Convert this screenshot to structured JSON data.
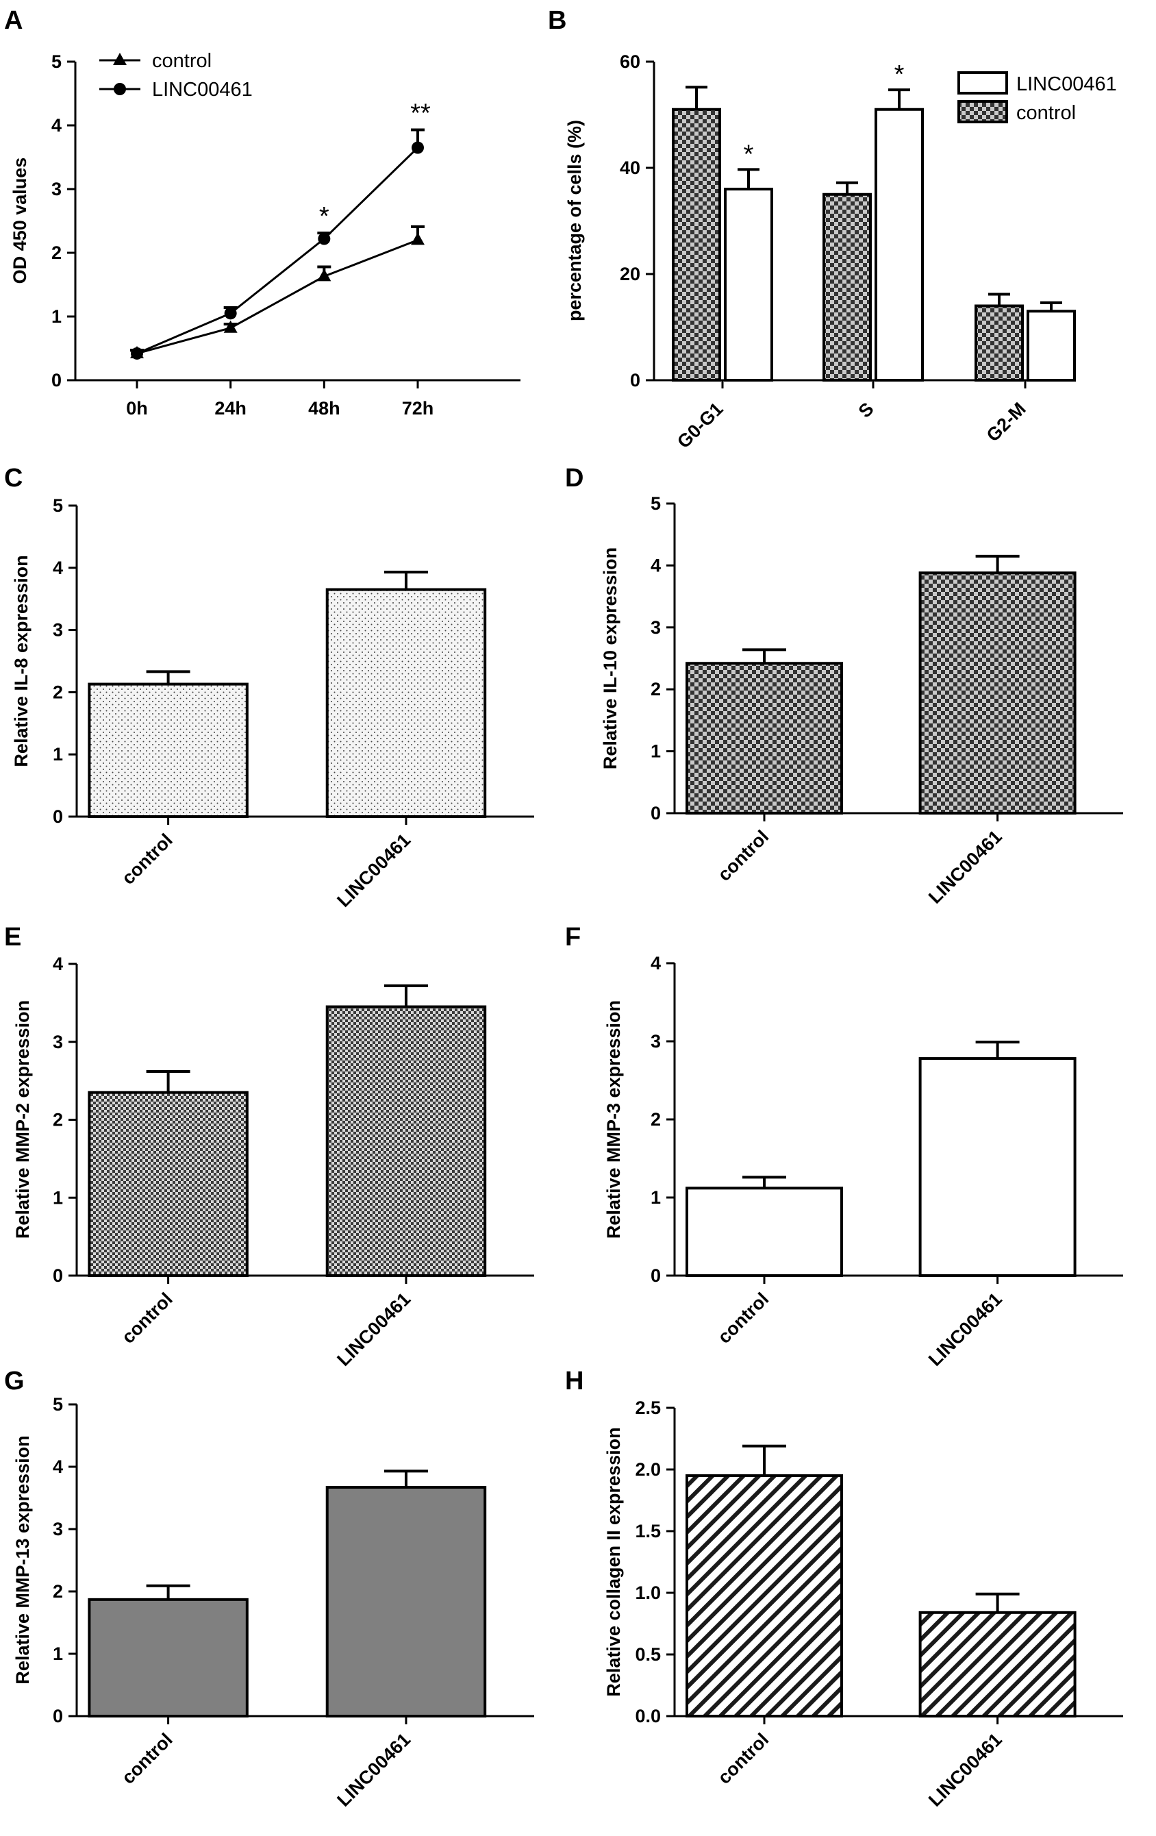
{
  "chart_data": [
    {
      "panel": "A",
      "type": "line",
      "ylabel": "OD 450 values",
      "ylim": [
        0,
        5
      ],
      "yticks": [
        0,
        1,
        2,
        3,
        4,
        5
      ],
      "categories": [
        "0h",
        "24h",
        "48h",
        "72h"
      ],
      "legend": "top-left",
      "series": [
        {
          "name": "control",
          "marker": "triangle",
          "values": [
            0.42,
            0.82,
            1.63,
            2.2
          ],
          "errors": [
            0.05,
            0.06,
            0.15,
            0.21
          ]
        },
        {
          "name": "LINC00461",
          "marker": "circle",
          "values": [
            0.42,
            1.05,
            2.22,
            3.65
          ],
          "errors": [
            0.05,
            0.09,
            0.09,
            0.28
          ]
        }
      ],
      "annotations": [
        {
          "category": "48h",
          "text": "*"
        },
        {
          "category": "72h",
          "text": "**"
        }
      ]
    },
    {
      "panel": "B",
      "type": "bar",
      "ylabel": "percentage of cells (%)",
      "ylim": [
        0,
        60
      ],
      "yticks": [
        0,
        20,
        40,
        60
      ],
      "categories": [
        "G0-G1",
        "S",
        "G2-M"
      ],
      "legend": "top-right",
      "legend_order": [
        "LINC00461",
        "control"
      ],
      "series": [
        {
          "name": "control",
          "pattern": "checker",
          "values": [
            51,
            35,
            14
          ],
          "errors": [
            4.2,
            2.2,
            2.2
          ]
        },
        {
          "name": "LINC00461",
          "pattern": "white",
          "values": [
            36,
            51,
            13
          ],
          "errors": [
            3.7,
            3.7,
            1.6
          ]
        }
      ],
      "annotations": [
        {
          "category": "G0-G1",
          "series": "LINC00461",
          "text": "*"
        },
        {
          "category": "S",
          "series": "LINC00461",
          "text": "*"
        }
      ]
    },
    {
      "panel": "C",
      "type": "bar",
      "ylabel": "Relative IL-8 expression",
      "ylim": [
        0,
        5
      ],
      "yticks": [
        0,
        1,
        2,
        3,
        4,
        5
      ],
      "categories": [
        "control",
        "LINC00461"
      ],
      "pattern": "dots",
      "values": [
        2.13,
        3.65
      ],
      "errors": [
        0.2,
        0.28
      ]
    },
    {
      "panel": "D",
      "type": "bar",
      "ylabel": "Relative IL-10 expression",
      "ylim": [
        0,
        5
      ],
      "yticks": [
        0,
        1,
        2,
        3,
        4,
        5
      ],
      "categories": [
        "control",
        "LINC00461"
      ],
      "pattern": "checker",
      "values": [
        2.42,
        3.88
      ],
      "errors": [
        0.22,
        0.27
      ]
    },
    {
      "panel": "E",
      "type": "bar",
      "ylabel": "Relative MMP-2  expression",
      "ylim": [
        0,
        4
      ],
      "yticks": [
        0,
        1,
        2,
        3,
        4
      ],
      "categories": [
        "control",
        "LINC00461"
      ],
      "pattern": "finecheck",
      "values": [
        2.35,
        3.45
      ],
      "errors": [
        0.27,
        0.27
      ]
    },
    {
      "panel": "F",
      "type": "bar",
      "ylabel": "Relative MMP-3 expression",
      "ylim": [
        0,
        4
      ],
      "yticks": [
        0,
        1,
        2,
        3,
        4
      ],
      "categories": [
        "control",
        "LINC00461"
      ],
      "pattern": "white",
      "values": [
        1.12,
        2.78
      ],
      "errors": [
        0.14,
        0.21
      ]
    },
    {
      "panel": "G",
      "type": "bar",
      "ylabel": "Relative MMP-13 expression",
      "ylim": [
        0,
        5
      ],
      "yticks": [
        0,
        1,
        2,
        3,
        4,
        5
      ],
      "categories": [
        "control",
        "LINC00461"
      ],
      "pattern": "gray",
      "values": [
        1.87,
        3.67
      ],
      "errors": [
        0.22,
        0.26
      ]
    },
    {
      "panel": "H",
      "type": "bar",
      "ylabel": "Relative collagen II  expression",
      "ylim": [
        0,
        2.5
      ],
      "yticks": [
        "0.0",
        "0.5",
        "1.0",
        "1.5",
        "2.0",
        "2.5"
      ],
      "categories": [
        "control",
        "LINC00461"
      ],
      "pattern": "hatch",
      "values": [
        1.95,
        0.84
      ],
      "errors": [
        0.24,
        0.15
      ]
    }
  ]
}
